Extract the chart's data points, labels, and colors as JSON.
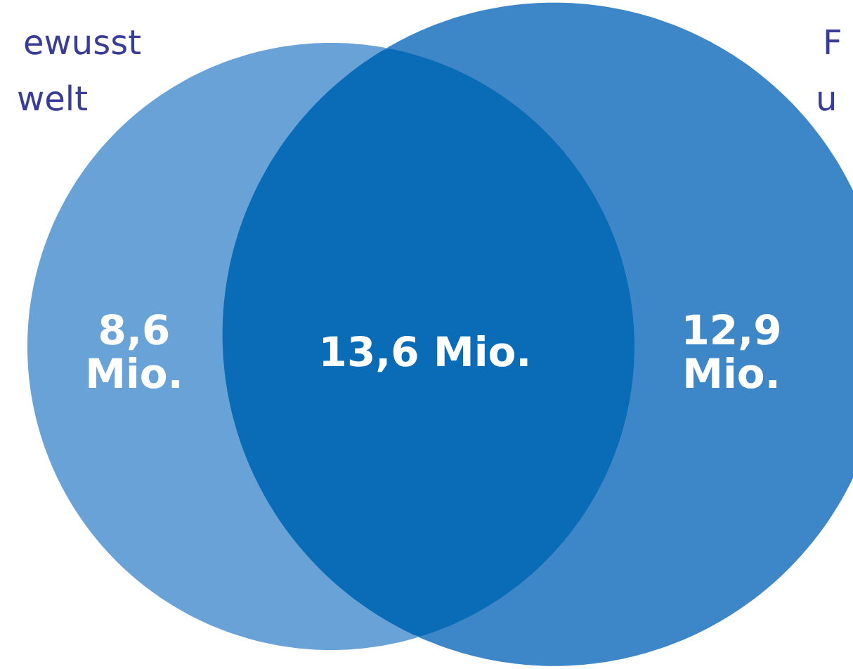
{
  "chart_data": {
    "type": "other",
    "values": [
      8.6,
      13.6,
      12.9
    ],
    "value_labels": [
      "8,6\nMio.",
      "13,6 Mio.",
      "12,9\nMio."
    ],
    "colors": [
      "#68a2d6",
      "#0a6bb6",
      "#3d86c7"
    ],
    "annotations": [
      "ewusst",
      "welt",
      "F",
      "u"
    ]
  }
}
